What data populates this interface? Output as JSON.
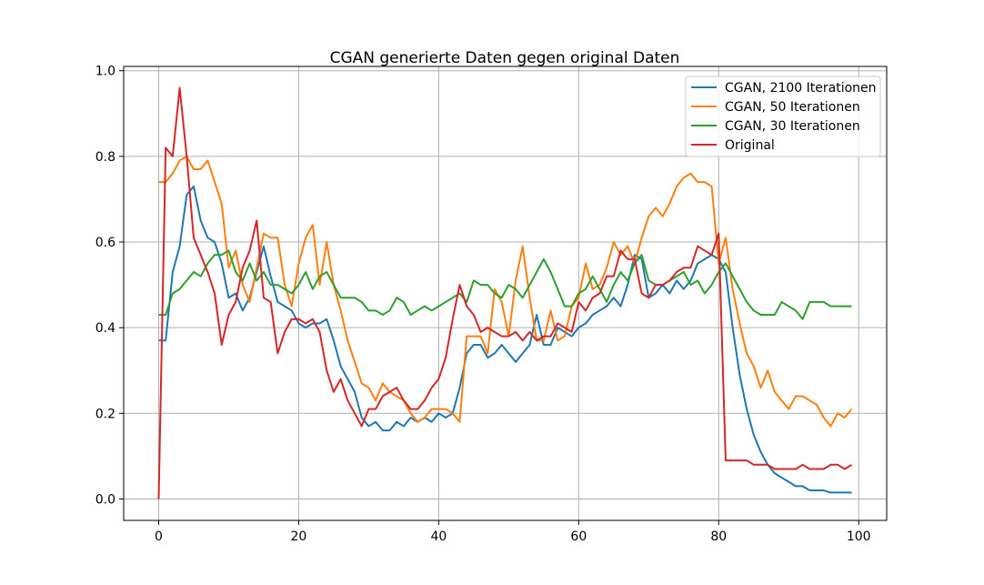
{
  "chart_data": {
    "type": "line",
    "title": "CGAN generierte Daten gegen original Daten",
    "xlabel": "",
    "ylabel": "",
    "xlim": [
      -5,
      104
    ],
    "ylim": [
      -0.05,
      1.01
    ],
    "xticks": [
      0,
      20,
      40,
      60,
      80,
      100
    ],
    "xtick_labels": [
      "0",
      "20",
      "40",
      "60",
      "80",
      "100"
    ],
    "yticks": [
      0.0,
      0.2,
      0.4,
      0.6,
      0.8,
      1.0
    ],
    "ytick_labels": [
      "0.0",
      "0.2",
      "0.4",
      "0.6",
      "0.8",
      "1.0"
    ],
    "grid": true,
    "legend_position": "top-right",
    "x_start": 0,
    "series": [
      {
        "name": "CGAN, 2100 Iterationen",
        "color": "#1f77b4",
        "values": [
          0.37,
          0.37,
          0.53,
          0.59,
          0.71,
          0.73,
          0.65,
          0.61,
          0.6,
          0.55,
          0.47,
          0.48,
          0.44,
          0.47,
          0.53,
          0.59,
          0.52,
          0.46,
          0.45,
          0.44,
          0.41,
          0.4,
          0.41,
          0.41,
          0.42,
          0.37,
          0.31,
          0.28,
          0.25,
          0.19,
          0.17,
          0.18,
          0.16,
          0.16,
          0.18,
          0.17,
          0.19,
          0.18,
          0.19,
          0.18,
          0.2,
          0.19,
          0.2,
          0.26,
          0.34,
          0.36,
          0.36,
          0.33,
          0.34,
          0.36,
          0.34,
          0.32,
          0.34,
          0.36,
          0.43,
          0.36,
          0.36,
          0.4,
          0.39,
          0.38,
          0.4,
          0.41,
          0.43,
          0.44,
          0.45,
          0.47,
          0.45,
          0.5,
          0.57,
          0.56,
          0.47,
          0.48,
          0.5,
          0.48,
          0.51,
          0.49,
          0.51,
          0.55,
          0.56,
          0.57,
          0.56,
          0.53,
          0.4,
          0.29,
          0.21,
          0.15,
          0.11,
          0.08,
          0.06,
          0.05,
          0.04,
          0.03,
          0.03,
          0.02,
          0.02,
          0.02,
          0.015,
          0.015,
          0.015,
          0.015
        ]
      },
      {
        "name": "CGAN, 50 Iterationen",
        "color": "#ff7f0e",
        "values": [
          0.74,
          0.74,
          0.76,
          0.79,
          0.8,
          0.77,
          0.77,
          0.79,
          0.74,
          0.69,
          0.54,
          0.58,
          0.5,
          0.46,
          0.54,
          0.62,
          0.61,
          0.61,
          0.5,
          0.45,
          0.55,
          0.61,
          0.64,
          0.5,
          0.6,
          0.5,
          0.44,
          0.37,
          0.32,
          0.27,
          0.26,
          0.23,
          0.27,
          0.25,
          0.24,
          0.23,
          0.2,
          0.18,
          0.19,
          0.21,
          0.21,
          0.21,
          0.2,
          0.18,
          0.38,
          0.38,
          0.38,
          0.34,
          0.49,
          0.46,
          0.38,
          0.51,
          0.59,
          0.47,
          0.37,
          0.37,
          0.44,
          0.37,
          0.38,
          0.45,
          0.47,
          0.55,
          0.49,
          0.5,
          0.54,
          0.6,
          0.57,
          0.59,
          0.55,
          0.61,
          0.66,
          0.68,
          0.66,
          0.69,
          0.73,
          0.75,
          0.76,
          0.74,
          0.74,
          0.73,
          0.55,
          0.61,
          0.49,
          0.41,
          0.34,
          0.31,
          0.26,
          0.3,
          0.25,
          0.23,
          0.21,
          0.24,
          0.24,
          0.23,
          0.22,
          0.19,
          0.17,
          0.2,
          0.19,
          0.21
        ]
      },
      {
        "name": "CGAN, 30 Iterationen",
        "color": "#2ca02c",
        "values": [
          0.43,
          0.43,
          0.48,
          0.49,
          0.51,
          0.53,
          0.52,
          0.55,
          0.57,
          0.57,
          0.58,
          0.53,
          0.51,
          0.55,
          0.51,
          0.53,
          0.5,
          0.5,
          0.49,
          0.48,
          0.5,
          0.53,
          0.49,
          0.52,
          0.53,
          0.5,
          0.47,
          0.47,
          0.47,
          0.46,
          0.44,
          0.44,
          0.43,
          0.44,
          0.47,
          0.46,
          0.43,
          0.44,
          0.45,
          0.44,
          0.45,
          0.46,
          0.47,
          0.48,
          0.46,
          0.51,
          0.5,
          0.5,
          0.48,
          0.47,
          0.5,
          0.49,
          0.47,
          0.5,
          0.53,
          0.56,
          0.53,
          0.49,
          0.45,
          0.45,
          0.48,
          0.49,
          0.52,
          0.49,
          0.46,
          0.5,
          0.53,
          0.51,
          0.55,
          0.57,
          0.51,
          0.5,
          0.5,
          0.51,
          0.52,
          0.53,
          0.5,
          0.51,
          0.48,
          0.5,
          0.53,
          0.55,
          0.52,
          0.49,
          0.46,
          0.44,
          0.43,
          0.43,
          0.43,
          0.46,
          0.45,
          0.44,
          0.42,
          0.46,
          0.46,
          0.46,
          0.45,
          0.45,
          0.45,
          0.45
        ]
      },
      {
        "name": "Original",
        "color": "#d62728",
        "values": [
          0.0,
          0.82,
          0.8,
          0.96,
          0.8,
          0.61,
          0.57,
          0.53,
          0.48,
          0.36,
          0.43,
          0.46,
          0.54,
          0.58,
          0.65,
          0.47,
          0.46,
          0.34,
          0.39,
          0.42,
          0.42,
          0.41,
          0.42,
          0.39,
          0.3,
          0.25,
          0.28,
          0.23,
          0.2,
          0.17,
          0.21,
          0.21,
          0.24,
          0.25,
          0.26,
          0.23,
          0.21,
          0.21,
          0.23,
          0.26,
          0.28,
          0.33,
          0.42,
          0.5,
          0.45,
          0.43,
          0.39,
          0.4,
          0.39,
          0.38,
          0.38,
          0.39,
          0.37,
          0.39,
          0.37,
          0.38,
          0.38,
          0.41,
          0.4,
          0.39,
          0.46,
          0.44,
          0.47,
          0.48,
          0.52,
          0.52,
          0.58,
          0.56,
          0.56,
          0.48,
          0.47,
          0.5,
          0.5,
          0.51,
          0.53,
          0.54,
          0.54,
          0.59,
          0.58,
          0.57,
          0.62,
          0.09,
          0.09,
          0.09,
          0.09,
          0.08,
          0.08,
          0.08,
          0.07,
          0.07,
          0.07,
          0.07,
          0.08,
          0.07,
          0.07,
          0.07,
          0.08,
          0.08,
          0.07,
          0.08
        ]
      }
    ]
  }
}
